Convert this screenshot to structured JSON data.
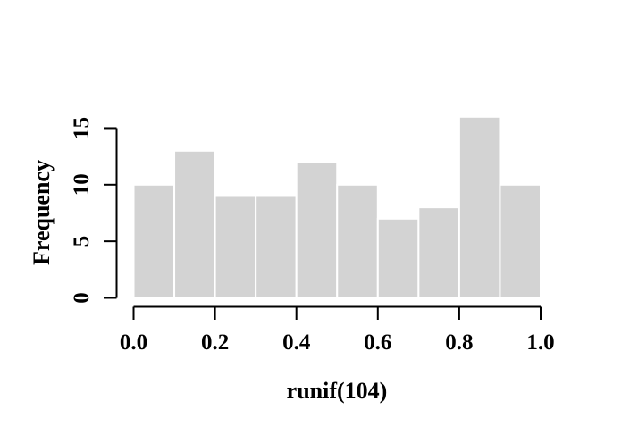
{
  "chart_data": {
    "type": "bar",
    "chart_kind": "histogram",
    "title": "",
    "xlabel": "runif(104)",
    "ylabel": "Frequency",
    "n_observations": 104,
    "bin_edges": [
      0.0,
      0.1,
      0.2,
      0.3,
      0.4,
      0.5,
      0.6,
      0.7,
      0.8,
      0.9,
      1.0
    ],
    "values": [
      10,
      13,
      9,
      9,
      12,
      10,
      7,
      8,
      16,
      10
    ],
    "xlim": [
      0.0,
      1.0
    ],
    "ylim": [
      0,
      16
    ],
    "x_tick_values": [
      0.0,
      0.2,
      0.4,
      0.6,
      0.8,
      1.0
    ],
    "x_tick_labels": [
      "0.0",
      "0.2",
      "0.4",
      "0.6",
      "0.8",
      "1.0"
    ],
    "y_tick_values": [
      0,
      5,
      10,
      15
    ],
    "y_tick_labels": [
      "0",
      "5",
      "10",
      "15"
    ],
    "grid": false,
    "legend_position": "none",
    "colors": {
      "bar_fill": "#d3d3d3",
      "bar_border": "#ffffff",
      "axis": "#000000",
      "text": "#000000",
      "background": "#ffffff"
    }
  }
}
